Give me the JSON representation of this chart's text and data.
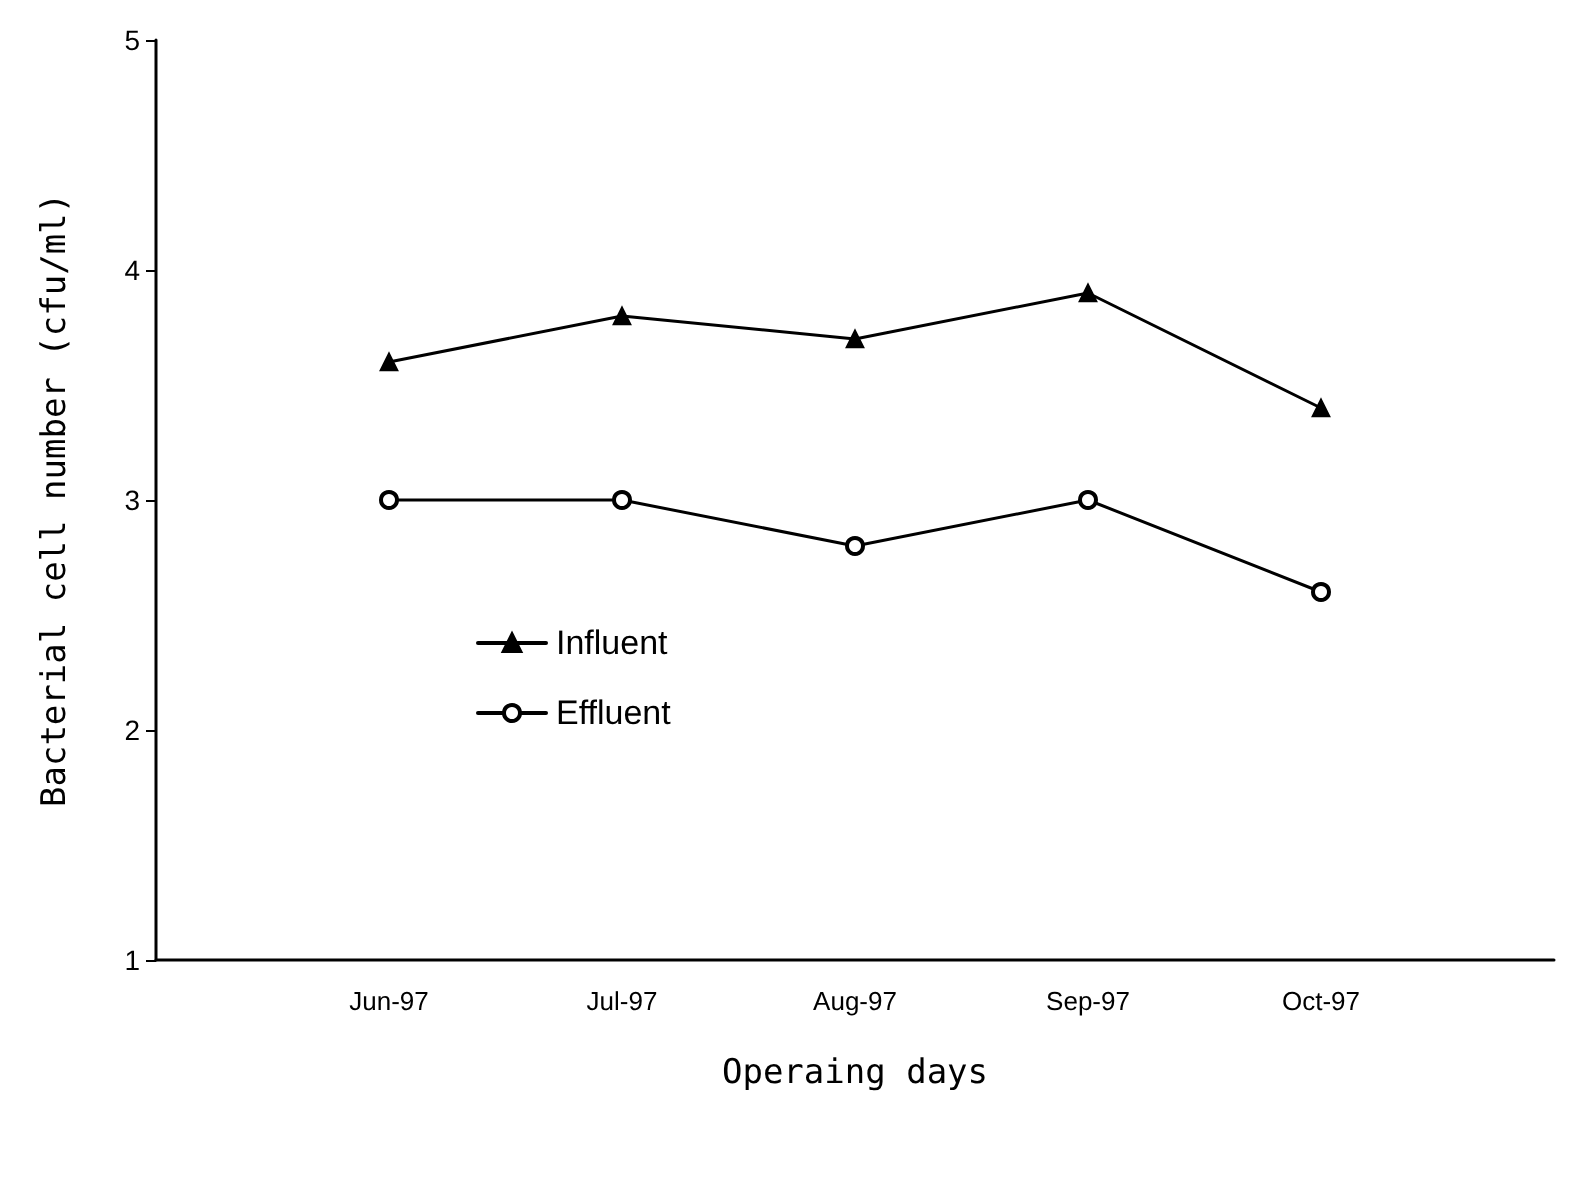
{
  "chart_data": {
    "type": "line",
    "xlabel": "Operaing days",
    "ylabel": "Bacterial cell number (cfu/ml)",
    "categories": [
      "Jun-97",
      "Jul-97",
      "Aug-97",
      "Sep-97",
      "Oct-97"
    ],
    "series": [
      {
        "name": "Influent",
        "color": "#000000",
        "marker": "triangle",
        "values": [
          3.6,
          3.8,
          3.7,
          3.9,
          3.4
        ]
      },
      {
        "name": "Effluent",
        "color": "#000000",
        "marker": "circle",
        "values": [
          3.0,
          3.0,
          2.8,
          3.0,
          2.6
        ]
      }
    ],
    "ylim": [
      1,
      5
    ],
    "yticks": [
      1,
      2,
      3,
      4,
      5
    ],
    "grid": false,
    "legend": "left",
    "line_style": "solid"
  }
}
